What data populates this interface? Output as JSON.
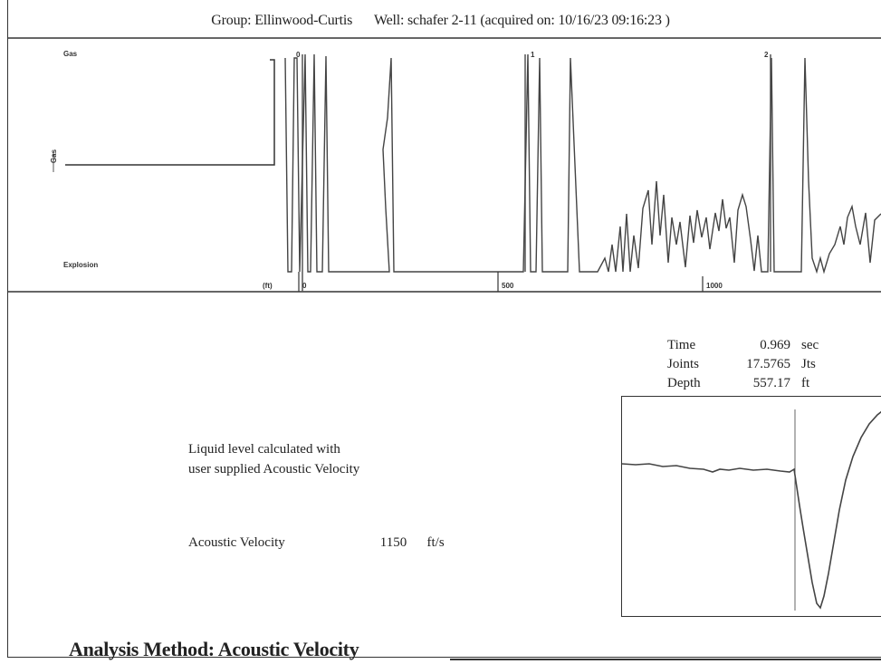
{
  "header": {
    "group": "Group: Ellinwood-Curtis",
    "well": "Well: schafer 2-11 (acquired on: 10/16/23 09:16:23 )"
  },
  "trace": {
    "label_top_left": "Gas",
    "label_side": "Gas",
    "label_bottom": "Explosion",
    "time_marks": [
      "0",
      "1",
      "2"
    ],
    "depth_unit": "(ft)",
    "depth_marks": [
      "0",
      "500",
      "1000"
    ]
  },
  "readout": {
    "rows": [
      {
        "label": "Time",
        "value": "0.969",
        "unit": "sec"
      },
      {
        "label": "Joints",
        "value": "17.5765",
        "unit": "Jts"
      },
      {
        "label": "Depth",
        "value": "557.17",
        "unit": "ft"
      }
    ]
  },
  "note": {
    "line1": "Liquid level calculated with",
    "line2": "user supplied Acoustic Velocity"
  },
  "velocity": {
    "label": "Acoustic Velocity",
    "value": "1150",
    "unit": "ft/s"
  },
  "analysis": {
    "text": "Analysis Method:   Acoustic Velocity"
  }
}
